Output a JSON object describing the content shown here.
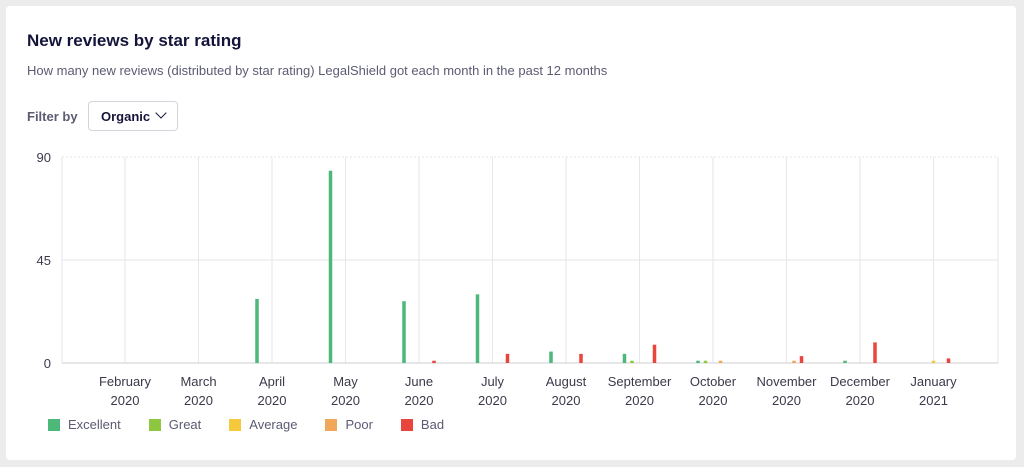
{
  "header": {
    "title": "New reviews by star rating",
    "subtitle": "How many new reviews (distributed by star rating) LegalShield got each month in the past 12 months"
  },
  "filter": {
    "label": "Filter by",
    "value": "Organic",
    "icon": "chevron-down-icon"
  },
  "chart_data": {
    "type": "bar",
    "title": "",
    "xlabel": "",
    "ylabel": "",
    "ylim": [
      0,
      90
    ],
    "yticks": [
      0,
      45,
      90
    ],
    "grid": true,
    "legend_position": "bottom-left",
    "categories": [
      [
        "February",
        "2020"
      ],
      [
        "March",
        "2020"
      ],
      [
        "April",
        "2020"
      ],
      [
        "May",
        "2020"
      ],
      [
        "June",
        "2020"
      ],
      [
        "July",
        "2020"
      ],
      [
        "August",
        "2020"
      ],
      [
        "September",
        "2020"
      ],
      [
        "October",
        "2020"
      ],
      [
        "November",
        "2020"
      ],
      [
        "December",
        "2020"
      ],
      [
        "January",
        "2021"
      ]
    ],
    "series": [
      {
        "name": "Excellent",
        "color": "#4cb87a",
        "values": [
          0,
          0,
          28,
          84,
          27,
          30,
          5,
          4,
          1,
          0,
          1,
          0
        ]
      },
      {
        "name": "Great",
        "color": "#8dc63f",
        "values": [
          0,
          0,
          0,
          0,
          0,
          0,
          0,
          1,
          1,
          0,
          0,
          0
        ]
      },
      {
        "name": "Average",
        "color": "#f5c93c",
        "values": [
          0,
          0,
          0,
          0,
          0,
          0,
          0,
          0,
          0,
          0,
          0,
          1
        ]
      },
      {
        "name": "Poor",
        "color": "#f0a75a",
        "values": [
          0,
          0,
          0,
          0,
          0,
          0,
          0,
          0,
          1,
          1,
          0,
          0
        ]
      },
      {
        "name": "Bad",
        "color": "#e8453c",
        "values": [
          0,
          0,
          0,
          0,
          1,
          4,
          4,
          8,
          0,
          3,
          9,
          2
        ]
      }
    ]
  }
}
